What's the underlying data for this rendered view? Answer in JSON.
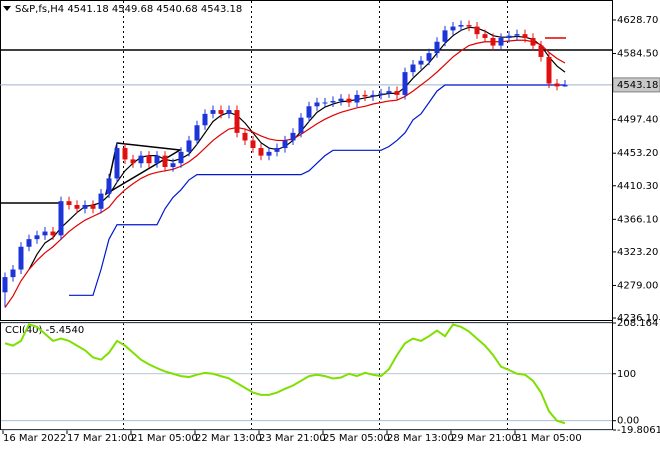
{
  "chart_data": [
    {
      "type": "candlestick",
      "title": "S&P,fs,H4  4541.18 4549.68 4540.68 4543.18",
      "categories": [
        "16 Mar 2022",
        null,
        null,
        null,
        null,
        null,
        null,
        null,
        "17 Mar 21:00",
        null,
        null,
        null,
        null,
        null,
        null,
        null,
        "21 Mar 05:00",
        null,
        null,
        null,
        null,
        null,
        null,
        null,
        "22 Mar 13:00",
        null,
        null,
        null,
        null,
        null,
        null,
        null,
        "23 Mar 21:00",
        null,
        null,
        null,
        null,
        null,
        null,
        null,
        "25 Mar 05:00",
        null,
        null,
        null,
        null,
        null,
        null,
        null,
        "28 Mar 13:00",
        null,
        null,
        null,
        null,
        null,
        null,
        null,
        "29 Mar 21:00",
        null,
        null,
        null,
        null,
        null,
        null,
        null,
        "31 Mar 05:00",
        null,
        null,
        null,
        null,
        null,
        null
      ],
      "open": [
        4270,
        4290,
        4300,
        4330,
        4340,
        4345,
        4350,
        4345,
        4390,
        4385,
        4380,
        4385,
        4380,
        4400,
        4420,
        4460,
        4445,
        4440,
        4450,
        4440,
        4450,
        4435,
        4440,
        4455,
        4470,
        4490,
        4505,
        4510,
        4505,
        4510,
        4480,
        4470,
        4460,
        4450,
        4455,
        4460,
        4470,
        4480,
        4500,
        4515,
        4520,
        4520,
        4522,
        4525,
        4520,
        4530,
        4528,
        4530,
        4532,
        4535,
        4530,
        4560,
        4570,
        4575,
        4585,
        4600,
        4615,
        4620,
        4622,
        4620,
        4610,
        4605,
        4595,
        4605,
        4608,
        4610,
        4605,
        4595,
        4580,
        4545,
        4541.18
      ],
      "high": [
        4296,
        4306,
        4336,
        4346,
        4351,
        4356,
        4356,
        4396,
        4396,
        4391,
        4391,
        4391,
        4406,
        4426,
        4468,
        4466,
        4451,
        4456,
        4456,
        4456,
        4456,
        4446,
        4461,
        4476,
        4496,
        4511,
        4516,
        4516,
        4516,
        4516,
        4486,
        4476,
        4466,
        4461,
        4466,
        4476,
        4486,
        4506,
        4521,
        4526,
        4526,
        4528,
        4531,
        4531,
        4536,
        4536,
        4536,
        4538,
        4541,
        4541,
        4566,
        4576,
        4581,
        4591,
        4606,
        4621,
        4626,
        4628,
        4628,
        4626,
        4616,
        4611,
        4611,
        4614,
        4616,
        4616,
        4611,
        4601,
        4586,
        4551,
        4549.68
      ],
      "low": [
        4250,
        4284,
        4294,
        4324,
        4334,
        4339,
        4339,
        4339,
        4379,
        4374,
        4374,
        4374,
        4374,
        4394,
        4414,
        4439,
        4434,
        4434,
        4434,
        4434,
        4429,
        4429,
        4434,
        4449,
        4464,
        4484,
        4499,
        4499,
        4499,
        4474,
        4464,
        4454,
        4444,
        4444,
        4449,
        4454,
        4464,
        4474,
        4494,
        4509,
        4514,
        4514,
        4516,
        4514,
        4514,
        4522,
        4522,
        4524,
        4526,
        4524,
        4524,
        4554,
        4564,
        4569,
        4579,
        4594,
        4609,
        4614,
        4614,
        4604,
        4599,
        4589,
        4589,
        4599,
        4602,
        4599,
        4589,
        4574,
        4539,
        4536,
        4540.68
      ],
      "close": [
        4290,
        4300,
        4330,
        4340,
        4345,
        4350,
        4345,
        4390,
        4385,
        4380,
        4385,
        4380,
        4400,
        4420,
        4460,
        4445,
        4440,
        4450,
        4440,
        4450,
        4435,
        4440,
        4455,
        4470,
        4490,
        4505,
        4510,
        4505,
        4510,
        4480,
        4470,
        4460,
        4450,
        4455,
        4460,
        4470,
        4480,
        4500,
        4515,
        4520,
        4520,
        4522,
        4525,
        4520,
        4530,
        4528,
        4530,
        4532,
        4535,
        4530,
        4560,
        4570,
        4575,
        4585,
        4600,
        4615,
        4620,
        4622,
        4620,
        4610,
        4605,
        4595,
        4605,
        4608,
        4610,
        4605,
        4595,
        4580,
        4545,
        4541.18,
        4543.18
      ],
      "up_color": "#1c34d8",
      "down_color": "#e01010",
      "series": [
        {
          "color": "#000000",
          "values": [
            null,
            null,
            null,
            4300,
            4320,
            4335,
            4342,
            4355,
            4365,
            4375,
            4383,
            4385,
            4388,
            4398,
            4415,
            4430,
            4440,
            4448,
            4450,
            4450,
            4445,
            4443,
            4446,
            4452,
            4465,
            4480,
            4495,
            4503,
            4507,
            4503,
            4493,
            4480,
            4467,
            4460,
            4458,
            4462,
            4470,
            4482,
            4495,
            4507,
            4514,
            4518,
            4521,
            4522,
            4524,
            4526,
            4528,
            4530,
            4532,
            4532,
            4540,
            4552,
            4562,
            4572,
            4585,
            4598,
            4608,
            4615,
            4619,
            4618,
            4614,
            4608,
            4606,
            4606,
            4607,
            4606,
            4603,
            4595,
            4580,
            4568,
            4560
          ]
        },
        {
          "color": "#e00000",
          "values": [
            4250,
            4265,
            4285,
            4300,
            4312,
            4322,
            4330,
            4340,
            4350,
            4358,
            4365,
            4370,
            4375,
            4382,
            4395,
            4405,
            4413,
            4420,
            4425,
            4428,
            4430,
            4432,
            4436,
            4442,
            4450,
            4460,
            4470,
            4478,
            4485,
            4487,
            4485,
            4481,
            4476,
            4472,
            4470,
            4470,
            4472,
            4478,
            4485,
            4492,
            4498,
            4503,
            4507,
            4510,
            4513,
            4515,
            4518,
            4520,
            4522,
            4523,
            4528,
            4535,
            4543,
            4551,
            4560,
            4570,
            4580,
            4588,
            4595,
            4598,
            4600,
            4600,
            4600,
            4601,
            4602,
            4602,
            4600,
            4596,
            4586,
            4578,
            4572
          ]
        },
        {
          "color": "#0018d0",
          "values": [
            null,
            null,
            null,
            null,
            null,
            null,
            null,
            null,
            4266,
            4266,
            4266,
            4266,
            4300,
            4340,
            4359,
            4359,
            4359,
            4359,
            4359,
            4359,
            4380,
            4395,
            4405,
            4418,
            4425,
            4425,
            4425,
            4425,
            4425,
            4425,
            4425,
            4425,
            4425,
            4425,
            4425,
            4425,
            4425,
            4425,
            4430,
            4440,
            4450,
            4457,
            4457,
            4457,
            4457,
            4457,
            4457,
            4457,
            4462,
            4470,
            4480,
            4497,
            4505,
            4520,
            4535,
            4543,
            4543,
            4543,
            4543,
            4543,
            4543,
            4543,
            4543,
            4543,
            4543,
            4543,
            4543,
            4543,
            4543,
            4543,
            4543
          ]
        }
      ],
      "last_value": 4543.18,
      "ylim": [
        4233.5,
        4655
      ],
      "yticks": [
        {
          "value": 4628.7,
          "label": "4628.70"
        },
        {
          "value": 4584.5,
          "label": "4584.50"
        },
        {
          "value": 4497.4,
          "label": "4497.40"
        },
        {
          "value": 4453.2,
          "label": "4453.20"
        },
        {
          "value": 4410.3,
          "label": "4410.30"
        },
        {
          "value": 4366.1,
          "label": "4366.10"
        },
        {
          "value": 4323.2,
          "label": "4323.20"
        },
        {
          "value": 4279,
          "label": "4279.00"
        },
        {
          "value": 4236.1,
          "label": "4236.10"
        }
      ]
    },
    {
      "type": "line",
      "title": "CCI(40) -5.4540",
      "series": [
        {
          "color": "#7ee000",
          "values": [
            165,
            160,
            170,
            205,
            200,
            185,
            170,
            175,
            170,
            160,
            150,
            135,
            130,
            145,
            170,
            160,
            145,
            130,
            120,
            112,
            105,
            100,
            95,
            93,
            98,
            102,
            100,
            95,
            90,
            80,
            70,
            60,
            55,
            55,
            60,
            68,
            75,
            85,
            95,
            98,
            95,
            90,
            92,
            100,
            95,
            102,
            98,
            95,
            110,
            140,
            165,
            175,
            170,
            180,
            192,
            180,
            205,
            200,
            190,
            175,
            160,
            140,
            115,
            108,
            100,
            98,
            85,
            60,
            20,
            0,
            -5.454
          ]
        }
      ],
      "ylim": [
        -19.8061,
        208.1647
      ],
      "yticks": [
        208.1647,
        100,
        {
          "value": 0,
          "label": "0.00"
        },
        -19.8061
      ]
    }
  ]
}
